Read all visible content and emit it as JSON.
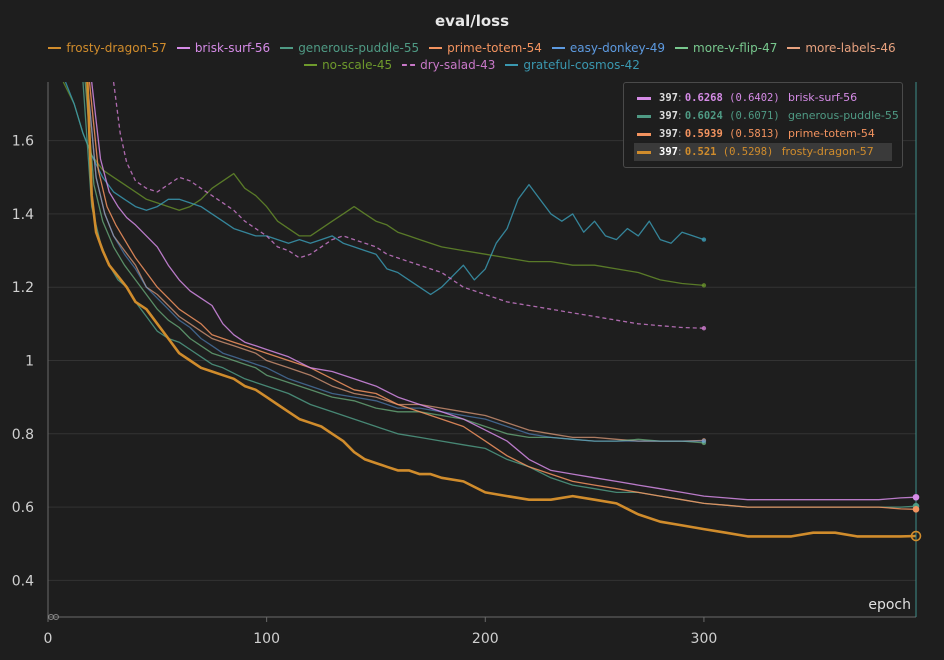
{
  "chart_data": {
    "type": "line",
    "title": "eval/loss",
    "xlabel": "epoch",
    "ylabel": "",
    "xlim": [
      0,
      397
    ],
    "ylim": [
      0.3,
      1.76
    ],
    "x_ticks": [
      0,
      100,
      200,
      300
    ],
    "y_ticks": [
      0.4,
      0.6,
      0.8,
      1.0,
      1.2,
      1.4,
      1.6
    ],
    "y_tick_labels": [
      "0.4",
      "0.6",
      "0.8",
      "1",
      "1.2",
      "1.4",
      "1.6"
    ],
    "hover_x": 397,
    "legend": [
      {
        "name": "frosty-dragon-57",
        "color": "#d08c2c",
        "dashed": false
      },
      {
        "name": "brisk-surf-56",
        "color": "#d58be6",
        "dashed": false
      },
      {
        "name": "generous-puddle-55",
        "color": "#4f9a84",
        "dashed": false
      },
      {
        "name": "prime-totem-54",
        "color": "#f3935f",
        "dashed": false
      },
      {
        "name": "easy-donkey-49",
        "color": "#5d9ae0",
        "dashed": false
      },
      {
        "name": "more-v-flip-47",
        "color": "#78c88e",
        "dashed": false
      },
      {
        "name": "more-labels-46",
        "color": "#e8a27f",
        "dashed": false
      },
      {
        "name": "no-scale-45",
        "color": "#6e9a2c",
        "dashed": false
      },
      {
        "name": "dry-salad-43",
        "color": "#c878c8",
        "dashed": true
      },
      {
        "name": "grateful-cosmos-42",
        "color": "#3a98b0",
        "dashed": false
      }
    ],
    "tooltip": [
      {
        "step": "397",
        "value": "0.6268",
        "raw": "(0.6402)",
        "name": "brisk-surf-56",
        "color": "#d58be6",
        "highlight": false
      },
      {
        "step": "397",
        "value": "0.6024",
        "raw": "(0.6071)",
        "name": "generous-puddle-55",
        "color": "#4f9a84",
        "highlight": false
      },
      {
        "step": "397",
        "value": "0.5939",
        "raw": "(0.5813)",
        "name": "prime-totem-54",
        "color": "#f3935f",
        "highlight": false
      },
      {
        "step": "397",
        "value": "0.521",
        "raw": "(0.5298)",
        "name": "frosty-dragon-57",
        "color": "#d08c2c",
        "highlight": true
      }
    ],
    "series": [
      {
        "name": "no-scale-45",
        "color": "#6e9a2c",
        "width": 1.3,
        "opacity": 0.75,
        "dashed": false,
        "x": [
          7,
          12,
          16,
          20,
          25,
          30,
          35,
          40,
          45,
          50,
          55,
          60,
          65,
          70,
          75,
          80,
          85,
          90,
          95,
          100,
          105,
          110,
          115,
          120,
          125,
          130,
          135,
          140,
          145,
          150,
          155,
          160,
          165,
          170,
          175,
          180,
          190,
          200,
          210,
          220,
          230,
          240,
          250,
          260,
          270,
          280,
          290,
          300
        ],
        "y": [
          1.76,
          1.7,
          1.62,
          1.56,
          1.52,
          1.5,
          1.48,
          1.46,
          1.44,
          1.43,
          1.42,
          1.41,
          1.42,
          1.44,
          1.47,
          1.49,
          1.51,
          1.47,
          1.45,
          1.42,
          1.38,
          1.36,
          1.34,
          1.34,
          1.36,
          1.38,
          1.4,
          1.42,
          1.4,
          1.38,
          1.37,
          1.35,
          1.34,
          1.33,
          1.32,
          1.31,
          1.3,
          1.29,
          1.28,
          1.27,
          1.27,
          1.26,
          1.26,
          1.25,
          1.24,
          1.22,
          1.21,
          1.205
        ]
      },
      {
        "name": "grateful-cosmos-42",
        "color": "#3a98b0",
        "width": 1.3,
        "opacity": 0.85,
        "dashed": false,
        "x": [
          8,
          12,
          16,
          20,
          25,
          30,
          35,
          40,
          45,
          50,
          55,
          60,
          65,
          70,
          75,
          80,
          85,
          90,
          95,
          100,
          105,
          110,
          115,
          120,
          125,
          130,
          135,
          140,
          145,
          150,
          155,
          160,
          165,
          170,
          175,
          180,
          185,
          190,
          195,
          200,
          205,
          210,
          215,
          220,
          225,
          230,
          235,
          240,
          245,
          250,
          255,
          260,
          265,
          270,
          275,
          280,
          285,
          290,
          295,
          300
        ],
        "y": [
          1.76,
          1.7,
          1.62,
          1.56,
          1.5,
          1.46,
          1.44,
          1.42,
          1.41,
          1.42,
          1.44,
          1.44,
          1.43,
          1.42,
          1.4,
          1.38,
          1.36,
          1.35,
          1.34,
          1.34,
          1.33,
          1.32,
          1.33,
          1.32,
          1.33,
          1.34,
          1.32,
          1.31,
          1.3,
          1.29,
          1.25,
          1.24,
          1.22,
          1.2,
          1.18,
          1.2,
          1.23,
          1.26,
          1.22,
          1.25,
          1.32,
          1.36,
          1.44,
          1.48,
          1.44,
          1.4,
          1.38,
          1.4,
          1.35,
          1.38,
          1.34,
          1.33,
          1.36,
          1.34,
          1.38,
          1.33,
          1.32,
          1.35,
          1.34,
          1.33
        ]
      },
      {
        "name": "dry-salad-43",
        "color": "#c878c8",
        "width": 1.3,
        "opacity": 0.85,
        "dashed": true,
        "x": [
          30,
          33,
          36,
          40,
          45,
          50,
          55,
          60,
          65,
          70,
          75,
          80,
          85,
          90,
          95,
          100,
          105,
          110,
          115,
          120,
          125,
          130,
          135,
          140,
          145,
          150,
          155,
          160,
          165,
          170,
          175,
          180,
          190,
          200,
          210,
          220,
          230,
          240,
          250,
          260,
          270,
          280,
          290,
          300
        ],
        "y": [
          1.76,
          1.62,
          1.54,
          1.49,
          1.47,
          1.46,
          1.48,
          1.5,
          1.49,
          1.47,
          1.45,
          1.43,
          1.41,
          1.38,
          1.36,
          1.34,
          1.31,
          1.3,
          1.28,
          1.29,
          1.31,
          1.33,
          1.34,
          1.33,
          1.32,
          1.31,
          1.29,
          1.28,
          1.27,
          1.26,
          1.25,
          1.24,
          1.2,
          1.18,
          1.16,
          1.15,
          1.14,
          1.13,
          1.12,
          1.11,
          1.1,
          1.095,
          1.09,
          1.088
        ]
      },
      {
        "name": "more-labels-46",
        "color": "#e8a27f",
        "width": 1.3,
        "opacity": 0.7,
        "dashed": false,
        "x": [
          18,
          22,
          26,
          30,
          35,
          40,
          45,
          50,
          55,
          60,
          65,
          70,
          75,
          80,
          85,
          90,
          95,
          100,
          110,
          120,
          130,
          140,
          150,
          160,
          170,
          180,
          190,
          200,
          210,
          220,
          230,
          240,
          250,
          260,
          270,
          280,
          290,
          300
        ],
        "y": [
          1.76,
          1.5,
          1.4,
          1.34,
          1.3,
          1.26,
          1.2,
          1.18,
          1.15,
          1.12,
          1.1,
          1.08,
          1.06,
          1.05,
          1.04,
          1.03,
          1.02,
          1.0,
          0.98,
          0.96,
          0.93,
          0.91,
          0.9,
          0.88,
          0.88,
          0.87,
          0.86,
          0.85,
          0.83,
          0.81,
          0.8,
          0.79,
          0.79,
          0.785,
          0.78,
          0.78,
          0.78,
          0.782
        ]
      },
      {
        "name": "more-v-flip-47",
        "color": "#78c88e",
        "width": 1.3,
        "opacity": 0.65,
        "dashed": false,
        "x": [
          17,
          21,
          25,
          30,
          35,
          40,
          45,
          50,
          55,
          60,
          65,
          70,
          75,
          80,
          85,
          90,
          95,
          100,
          110,
          120,
          130,
          140,
          150,
          160,
          170,
          180,
          190,
          200,
          210,
          220,
          230,
          240,
          250,
          260,
          270,
          280,
          290,
          300
        ],
        "y": [
          1.76,
          1.48,
          1.38,
          1.31,
          1.26,
          1.22,
          1.18,
          1.14,
          1.11,
          1.09,
          1.06,
          1.04,
          1.02,
          1.01,
          1.0,
          0.99,
          0.98,
          0.96,
          0.94,
          0.92,
          0.9,
          0.89,
          0.87,
          0.86,
          0.86,
          0.85,
          0.84,
          0.82,
          0.8,
          0.79,
          0.79,
          0.785,
          0.78,
          0.78,
          0.785,
          0.78,
          0.78,
          0.775
        ]
      },
      {
        "name": "easy-donkey-49",
        "color": "#5d9ae0",
        "width": 1.3,
        "opacity": 0.55,
        "dashed": false,
        "x": [
          18,
          22,
          26,
          30,
          35,
          40,
          45,
          50,
          55,
          60,
          65,
          70,
          75,
          80,
          85,
          90,
          95,
          100,
          110,
          120,
          130,
          140,
          150,
          160,
          170,
          180,
          190,
          200,
          210,
          220,
          230,
          240,
          250,
          260,
          270,
          280,
          290,
          300
        ],
        "y": [
          1.76,
          1.5,
          1.4,
          1.34,
          1.29,
          1.25,
          1.2,
          1.17,
          1.14,
          1.11,
          1.09,
          1.06,
          1.04,
          1.02,
          1.01,
          1.0,
          0.99,
          0.98,
          0.95,
          0.93,
          0.91,
          0.9,
          0.89,
          0.87,
          0.87,
          0.86,
          0.85,
          0.84,
          0.82,
          0.8,
          0.79,
          0.785,
          0.78,
          0.78,
          0.78,
          0.78,
          0.78,
          0.78
        ]
      },
      {
        "name": "generous-puddle-55",
        "color": "#4f9a84",
        "width": 1.3,
        "opacity": 0.85,
        "dashed": false,
        "x": [
          16,
          20,
          24,
          28,
          32,
          36,
          40,
          45,
          50,
          55,
          60,
          65,
          70,
          75,
          80,
          90,
          100,
          110,
          120,
          130,
          140,
          150,
          160,
          170,
          180,
          190,
          200,
          210,
          220,
          230,
          240,
          250,
          260,
          270,
          280,
          290,
          300,
          310,
          320,
          330,
          340,
          350,
          360,
          370,
          380,
          390,
          397
        ],
        "y": [
          1.76,
          1.42,
          1.32,
          1.26,
          1.22,
          1.2,
          1.16,
          1.12,
          1.08,
          1.06,
          1.05,
          1.03,
          1.01,
          0.99,
          0.98,
          0.95,
          0.93,
          0.91,
          0.88,
          0.86,
          0.84,
          0.82,
          0.8,
          0.79,
          0.78,
          0.77,
          0.76,
          0.73,
          0.71,
          0.68,
          0.66,
          0.65,
          0.64,
          0.64,
          0.63,
          0.62,
          0.61,
          0.605,
          0.6,
          0.6,
          0.6,
          0.6,
          0.6,
          0.6,
          0.6,
          0.6,
          0.6024
        ]
      },
      {
        "name": "prime-totem-54",
        "color": "#f3935f",
        "width": 1.3,
        "opacity": 0.85,
        "dashed": false,
        "x": [
          19,
          23,
          27,
          31,
          35,
          40,
          45,
          50,
          55,
          60,
          65,
          70,
          75,
          80,
          85,
          90,
          95,
          100,
          110,
          120,
          130,
          140,
          150,
          160,
          170,
          180,
          190,
          200,
          210,
          220,
          230,
          240,
          250,
          260,
          270,
          280,
          290,
          300,
          310,
          320,
          330,
          340,
          350,
          360,
          370,
          380,
          390,
          397
        ],
        "y": [
          1.76,
          1.52,
          1.42,
          1.37,
          1.33,
          1.28,
          1.24,
          1.2,
          1.17,
          1.14,
          1.12,
          1.1,
          1.07,
          1.06,
          1.05,
          1.04,
          1.03,
          1.02,
          1.0,
          0.98,
          0.95,
          0.92,
          0.91,
          0.88,
          0.86,
          0.84,
          0.82,
          0.78,
          0.74,
          0.71,
          0.69,
          0.67,
          0.66,
          0.65,
          0.64,
          0.63,
          0.62,
          0.61,
          0.605,
          0.6,
          0.6,
          0.6,
          0.6,
          0.6,
          0.6,
          0.6,
          0.595,
          0.5939
        ]
      },
      {
        "name": "brisk-surf-56",
        "color": "#d58be6",
        "width": 1.3,
        "opacity": 0.85,
        "dashed": false,
        "x": [
          20,
          24,
          28,
          32,
          36,
          40,
          45,
          50,
          55,
          60,
          65,
          70,
          75,
          80,
          85,
          90,
          95,
          100,
          110,
          120,
          130,
          140,
          150,
          160,
          170,
          180,
          190,
          200,
          210,
          220,
          230,
          240,
          250,
          260,
          270,
          280,
          290,
          300,
          310,
          320,
          330,
          340,
          350,
          360,
          370,
          380,
          390,
          397
        ],
        "y": [
          1.76,
          1.55,
          1.46,
          1.42,
          1.39,
          1.37,
          1.34,
          1.31,
          1.26,
          1.22,
          1.19,
          1.17,
          1.15,
          1.1,
          1.07,
          1.05,
          1.04,
          1.03,
          1.01,
          0.98,
          0.97,
          0.95,
          0.93,
          0.9,
          0.88,
          0.86,
          0.84,
          0.81,
          0.78,
          0.73,
          0.7,
          0.69,
          0.68,
          0.67,
          0.66,
          0.65,
          0.64,
          0.63,
          0.625,
          0.62,
          0.62,
          0.62,
          0.62,
          0.62,
          0.62,
          0.62,
          0.625,
          0.6268
        ]
      },
      {
        "name": "frosty-dragon-57",
        "color": "#d08c2c",
        "width": 2.6,
        "opacity": 1.0,
        "dashed": false,
        "x": [
          18,
          20,
          22,
          25,
          28,
          32,
          36,
          40,
          45,
          50,
          55,
          60,
          65,
          70,
          75,
          80,
          85,
          90,
          95,
          100,
          105,
          110,
          115,
          120,
          125,
          130,
          135,
          140,
          145,
          150,
          155,
          160,
          165,
          170,
          175,
          180,
          190,
          200,
          210,
          220,
          230,
          240,
          250,
          260,
          270,
          280,
          290,
          300,
          310,
          320,
          330,
          340,
          350,
          360,
          370,
          380,
          390,
          397
        ],
        "y": [
          1.76,
          1.45,
          1.35,
          1.3,
          1.26,
          1.23,
          1.2,
          1.16,
          1.14,
          1.1,
          1.06,
          1.02,
          1.0,
          0.98,
          0.97,
          0.96,
          0.95,
          0.93,
          0.92,
          0.9,
          0.88,
          0.86,
          0.84,
          0.83,
          0.82,
          0.8,
          0.78,
          0.75,
          0.73,
          0.72,
          0.71,
          0.7,
          0.7,
          0.69,
          0.69,
          0.68,
          0.67,
          0.64,
          0.63,
          0.62,
          0.62,
          0.63,
          0.62,
          0.61,
          0.58,
          0.56,
          0.55,
          0.54,
          0.53,
          0.52,
          0.52,
          0.52,
          0.53,
          0.53,
          0.52,
          0.52,
          0.52,
          0.521
        ]
      }
    ]
  }
}
